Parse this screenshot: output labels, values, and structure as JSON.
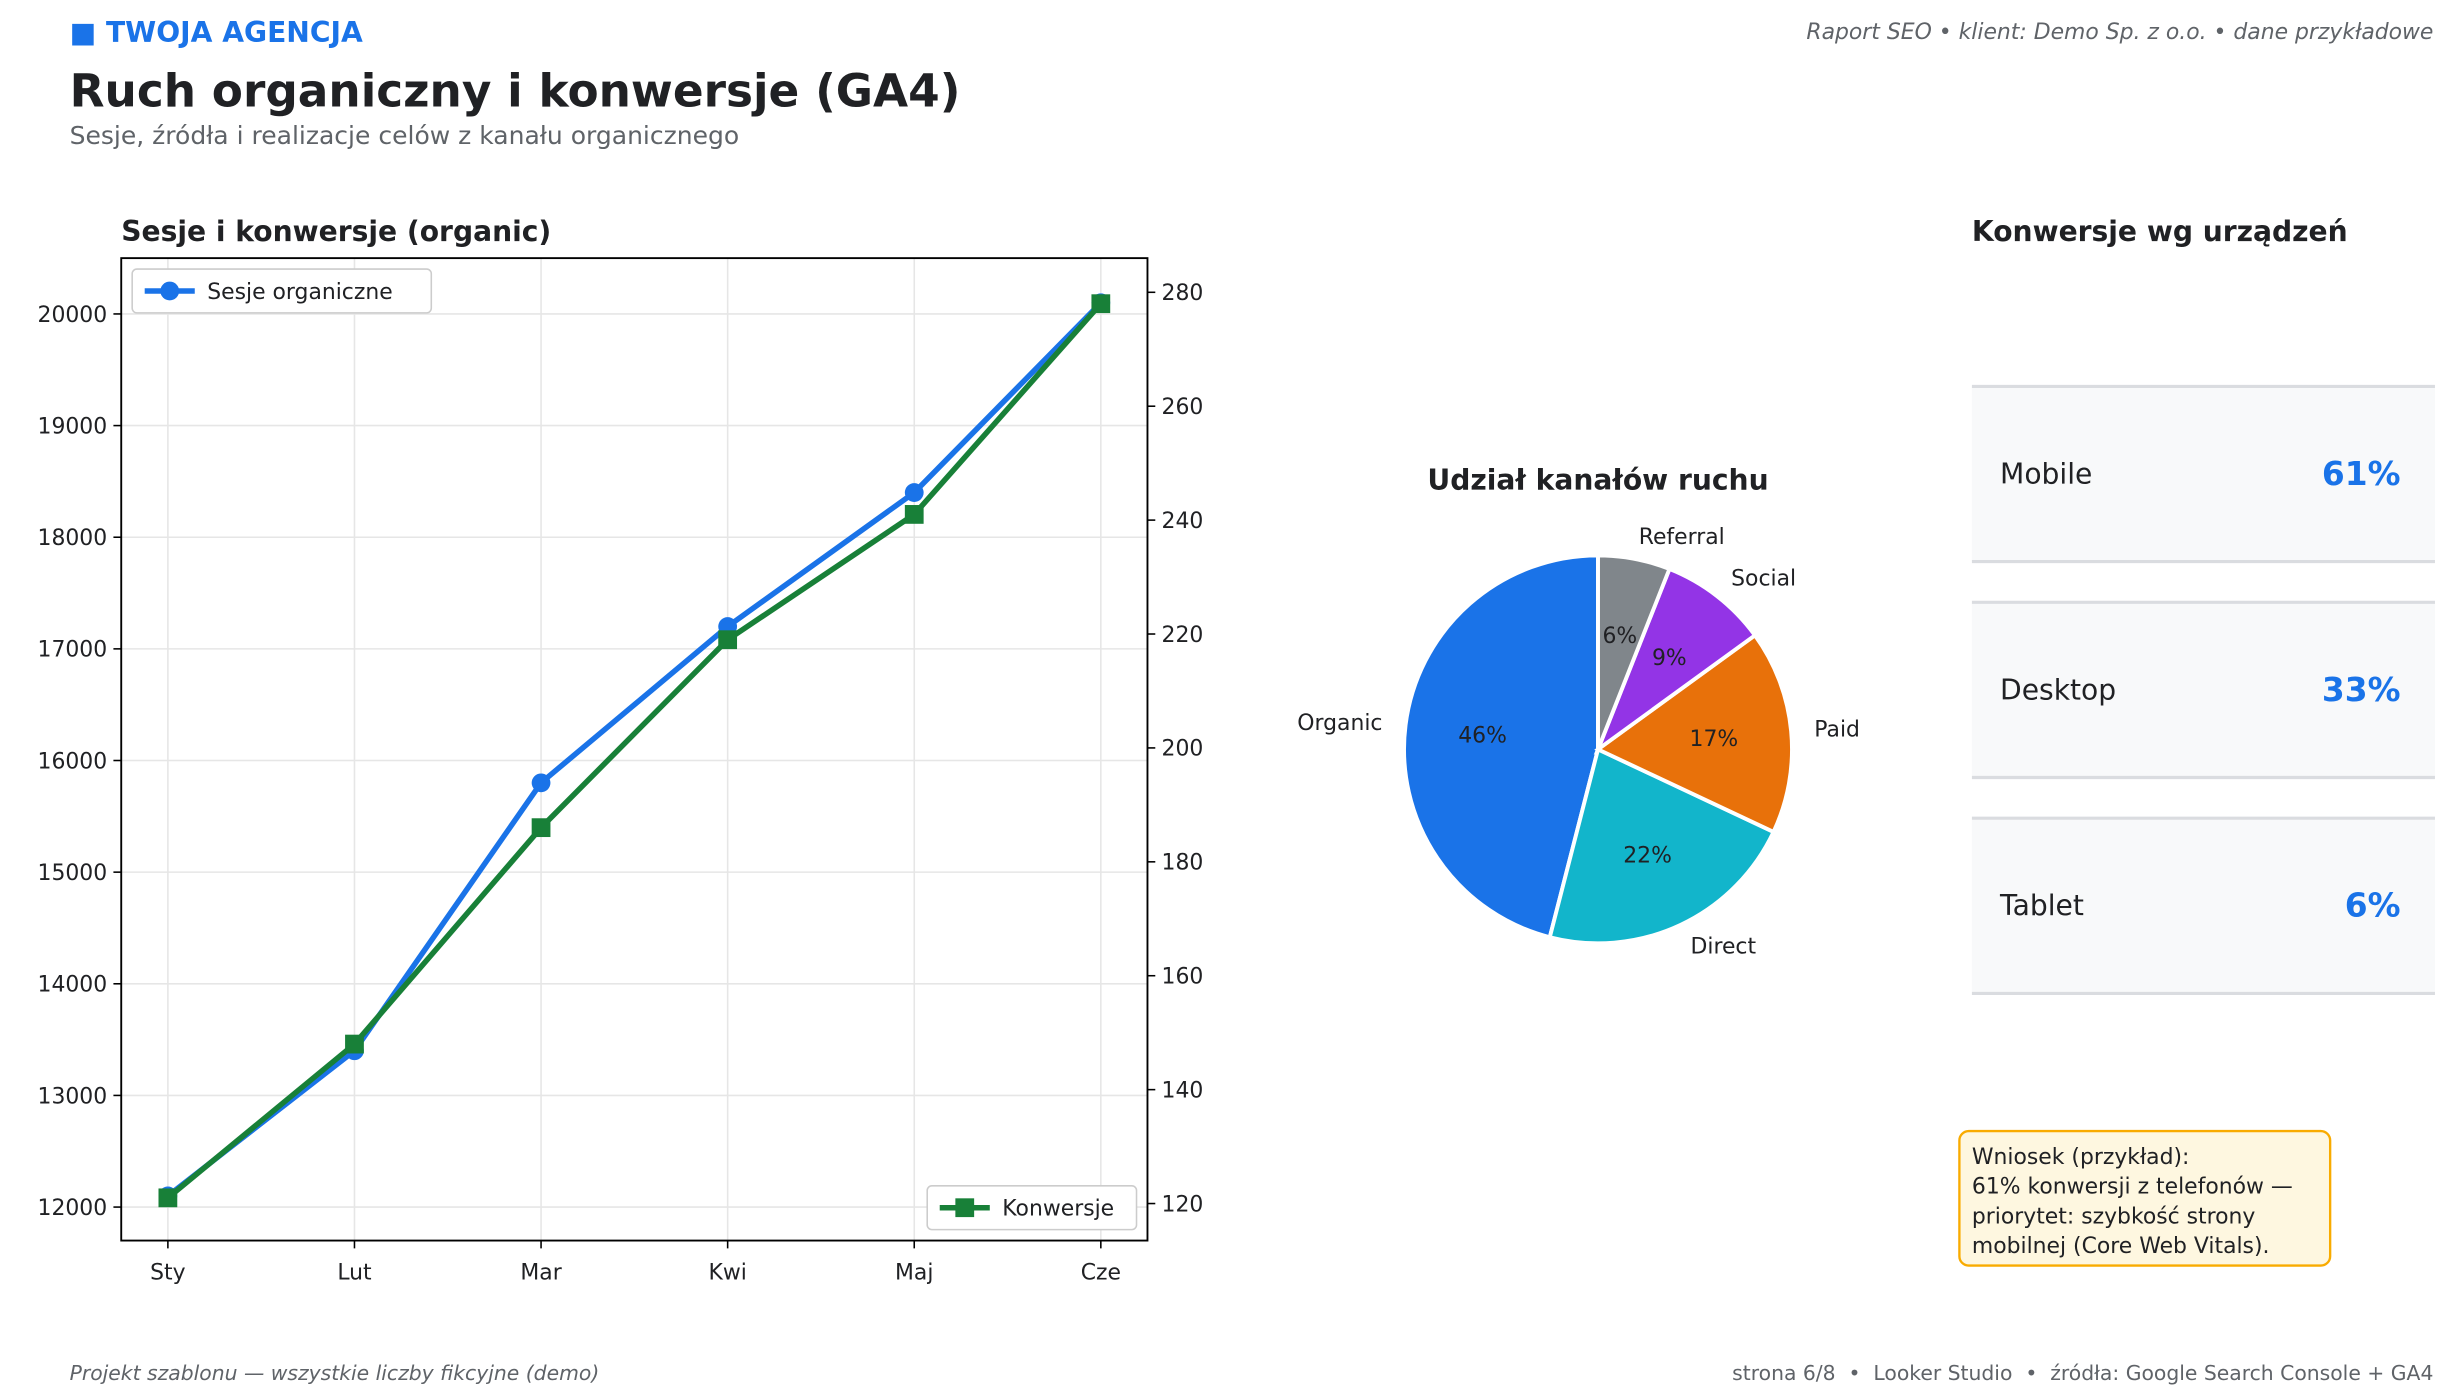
{
  "header": {
    "brand": "■ TWOJA AGENCJA",
    "meta": "Raport SEO • klient: Demo Sp. z o.o. • dane przykładowe",
    "title": "Ruch organiczny i konwersje (GA4)",
    "subtitle": "Sesje, źródła i realizacje celów z kanału organicznego"
  },
  "chart_data": [
    {
      "type": "line",
      "title": "Sesje i konwersje (organic)",
      "categories": [
        "Sty",
        "Lut",
        "Mar",
        "Kwi",
        "Maj",
        "Cze"
      ],
      "series": [
        {
          "name": "Sesje organiczne",
          "color": "#1a73e8",
          "marker": "circle",
          "values": [
            12100,
            13400,
            15800,
            17200,
            18400,
            20100
          ],
          "legend": "upper left"
        },
        {
          "name": "Konwersje",
          "color": "#188038",
          "marker": "square",
          "axis": "y2",
          "values": [
            121,
            148,
            186,
            219,
            241,
            278
          ],
          "legend": "lower right"
        }
      ],
      "ylim": [
        11700,
        20500
      ],
      "yticks": [
        12000,
        13000,
        14000,
        15000,
        16000,
        17000,
        18000,
        19000,
        20000
      ],
      "y2lim": [
        113.5,
        286
      ],
      "y2ticks": [
        120,
        140,
        160,
        180,
        200,
        220,
        240,
        260,
        280
      ],
      "grid": true
    },
    {
      "type": "pie",
      "title": "Udział kanałów ruchu",
      "categories": [
        "Organic",
        "Direct",
        "Paid",
        "Social",
        "Referral"
      ],
      "values": [
        46,
        22,
        17,
        9,
        6
      ],
      "value_labels": [
        "46%",
        "22%",
        "17%",
        "9%",
        "6%"
      ],
      "colors": [
        "#1a73e8",
        "#12b5cb",
        "#e8710a",
        "#9334e6",
        "#80868b"
      ],
      "start_angle": 90
    }
  ],
  "cards": {
    "title": "Konwersje wg urządzeń",
    "items": [
      {
        "label": "Mobile",
        "value": 61,
        "value_label": "61%"
      },
      {
        "label": "Desktop",
        "value": 33,
        "value_label": "33%"
      },
      {
        "label": "Tablet",
        "value": 6,
        "value_label": "6%"
      }
    ]
  },
  "note": {
    "lines": [
      "Wniosek (przykład):",
      "61% konwersji z telefonów —",
      "priorytet: szybkość strony",
      "mobilnej (Core Web Vitals)."
    ]
  },
  "footer": {
    "left": "Projekt szablonu — wszystkie liczby fikcyjne (demo)",
    "right": "strona 6/8  •  Looker Studio  •  źródła: Google Search Console + GA4"
  }
}
